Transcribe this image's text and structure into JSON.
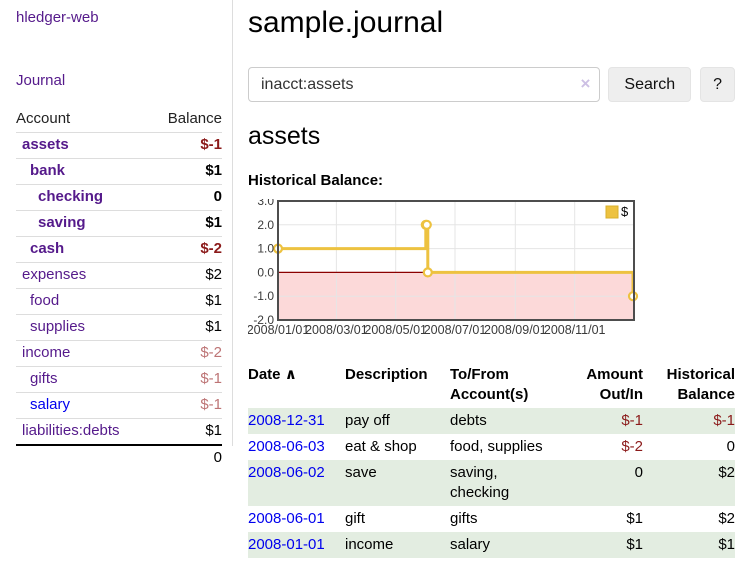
{
  "colors": {
    "link_purple": "#551A8B",
    "link_blue": "#0000EE",
    "negative_strong": "#8b1a1a",
    "negative_weak": "#bd7475",
    "row_green": "#e3ede1",
    "chart_line_gold": "#EDC240",
    "chart_negative_region": "#fcd9d9",
    "chart_zero_line": "#8b0000"
  },
  "sidebar": {
    "brand": "hledger-web",
    "journal_link": "Journal",
    "accounts_table": {
      "account_header": "Account",
      "balance_header": "Balance",
      "rows": [
        {
          "name": "assets",
          "indent": 0,
          "bold": true,
          "balance": "$-1",
          "balance_class": "neg"
        },
        {
          "name": "bank",
          "indent": 1,
          "bold": true,
          "balance": "$1",
          "balance_class": ""
        },
        {
          "name": "checking",
          "indent": 2,
          "bold": true,
          "balance": "0",
          "balance_class": ""
        },
        {
          "name": "saving",
          "indent": 2,
          "bold": true,
          "balance": "$1",
          "balance_class": ""
        },
        {
          "name": "cash",
          "indent": 1,
          "bold": true,
          "balance": "$-2",
          "balance_class": "neg"
        },
        {
          "name": "expenses",
          "indent": 0,
          "bold": false,
          "balance": "$2",
          "balance_class": ""
        },
        {
          "name": "food",
          "indent": 1,
          "bold": false,
          "balance": "$1",
          "balance_class": ""
        },
        {
          "name": "supplies",
          "indent": 1,
          "bold": false,
          "balance": "$1",
          "balance_class": ""
        },
        {
          "name": "income",
          "indent": 0,
          "bold": false,
          "balance": "$-2",
          "balance_class": "neg-weak"
        },
        {
          "name": "gifts",
          "indent": 1,
          "bold": false,
          "balance": "$-1",
          "balance_class": "neg-weak"
        },
        {
          "name": "salary",
          "indent": 1,
          "bold": false,
          "blue": true,
          "balance": "$-1",
          "balance_class": "neg-weak"
        },
        {
          "name": "liabilities:debts",
          "indent": 0,
          "bold": false,
          "balance": "$1",
          "balance_class": ""
        }
      ],
      "total": "0"
    }
  },
  "header": {
    "title": "sample.journal"
  },
  "search": {
    "value": "inacct:assets",
    "clear_icon": "×",
    "button_label": "Search",
    "help_label": "?"
  },
  "account_page": {
    "heading": "assets",
    "chart_label": "Historical Balance:"
  },
  "chart_data": {
    "type": "line",
    "style": "step",
    "title": "Historical Balance",
    "series": [
      {
        "name": "$",
        "color": "#EDC240",
        "points": [
          [
            "2008-01-01",
            1
          ],
          [
            "2008-06-01",
            2
          ],
          [
            "2008-06-02",
            2
          ],
          [
            "2008-06-03",
            0
          ],
          [
            "2008-12-31",
            -1
          ]
        ]
      }
    ],
    "x_range": [
      "2008-01-01",
      "2009-01-01"
    ],
    "x_tick_labels": [
      "2008/01/01",
      "2008/03/01",
      "2008/05/01",
      "2008/07/01",
      "2008/09/01",
      "2008/11/01"
    ],
    "y_ticks": [
      3.0,
      2.0,
      1.0,
      0.0,
      -1.0,
      -2.0
    ],
    "y_tick_labels": [
      "3.0",
      "2.0",
      "1.0",
      "0.0",
      "-1.0",
      "-2.0"
    ],
    "ylim": [
      -2,
      3
    ],
    "grid": true,
    "legend": {
      "label": "$",
      "position": "top-right"
    },
    "zero_line_color": "#8b0000",
    "negative_region_color": "#fcd9d9",
    "grid_color": "#e5e5e5",
    "border_color": "#4d4d4d"
  },
  "register_table": {
    "columns": [
      {
        "line1": "Date",
        "sort": "∧",
        "sortable": true
      },
      {
        "line1": "Description"
      },
      {
        "line1": "To/From",
        "line2": "Account(s)"
      },
      {
        "line1": "Amount",
        "line2": "Out/In",
        "align": "right"
      },
      {
        "line1": "Historical",
        "line2": "Balance",
        "align": "right"
      }
    ],
    "rows": [
      {
        "date": "2008-12-31",
        "description": "pay off",
        "accounts": "debts",
        "amount": "$-1",
        "amount_neg": true,
        "balance": "$-1",
        "balance_neg": true
      },
      {
        "date": "2008-06-03",
        "description": "eat & shop",
        "accounts": "food, supplies",
        "amount": "$-2",
        "amount_neg": true,
        "balance": "0",
        "balance_neg": false
      },
      {
        "date": "2008-06-02",
        "description": "save",
        "accounts": "saving, checking",
        "amount": "0",
        "amount_neg": false,
        "balance": "$2",
        "balance_neg": false
      },
      {
        "date": "2008-06-01",
        "description": "gift",
        "accounts": "gifts",
        "amount": "$1",
        "amount_neg": false,
        "balance": "$2",
        "balance_neg": false
      },
      {
        "date": "2008-01-01",
        "description": "income",
        "accounts": "salary",
        "amount": "$1",
        "amount_neg": false,
        "balance": "$1",
        "balance_neg": false
      }
    ]
  }
}
